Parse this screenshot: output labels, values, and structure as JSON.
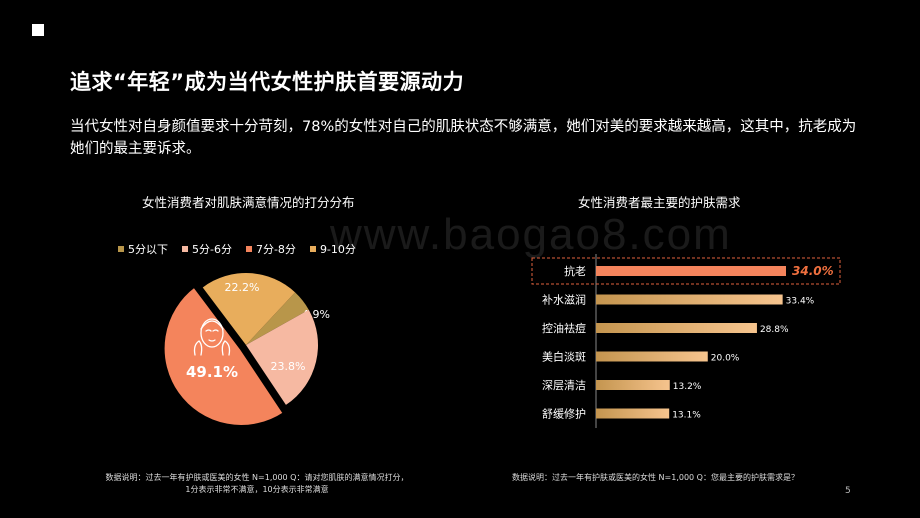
{
  "title": "追求“年轻”成为当代女性护肤首要源动力",
  "intro": "当代女性对自身颜值要求十分苛刻，78%的女性对自己的肌肤状态不够满意，她们对美的要求越来越高，这其中，抗老成为她们的最主要诉求。",
  "watermark": "www.baogao8.com",
  "page_number": "5",
  "notes": {
    "left_line1": "数据说明：过去一年有护肤或医美的女性 N=1,000 Q：请对您肌肤的满意情况打分，",
    "left_line2": "1分表示非常不满意，10分表示非常满意",
    "right": "数据说明：过去一年有护肤或医美的女性 N=1,000 Q：您最主要的护肤需求是？"
  },
  "colors": {
    "background": "#000000",
    "highlight_border": "#e0623e",
    "highlight_text": "#f0703f"
  },
  "chart_data": [
    {
      "type": "pie",
      "title": "女性消费者对肌肤满意情况的打分分布",
      "legend_position": "top",
      "slices": [
        {
          "label": "5分以下",
          "value": 4.9,
          "display": "4.9%",
          "color": "#b8964a"
        },
        {
          "label": "5分-6分",
          "value": 23.8,
          "display": "23.8%",
          "color": "#f6b9a2"
        },
        {
          "label": "7分-8分",
          "value": 49.1,
          "display": "49.1%",
          "color": "#f4845c"
        },
        {
          "label": "9-10分",
          "value": 22.2,
          "display": "22.2%",
          "color": "#e8ad5c"
        }
      ],
      "icon": "face-icon"
    },
    {
      "type": "bar",
      "orientation": "horizontal",
      "title": "女性消费者最主要的护肤需求",
      "categories": [
        "抗老",
        "补水滋润",
        "控油祛痘",
        "美白淡斑",
        "深层清洁",
        "舒缓修护"
      ],
      "values": [
        34.0,
        33.4,
        28.8,
        20.0,
        13.2,
        13.1
      ],
      "labels": [
        "34.0%",
        "33.4%",
        "28.8%",
        "20.0%",
        "13.2%",
        "13.1%"
      ],
      "highlight_index": 0,
      "xlim": [
        0,
        34.0
      ],
      "colors": {
        "highlight": "#f4845c",
        "normal_start": "#c4954f",
        "normal_end": "#f6c48e"
      }
    }
  ]
}
